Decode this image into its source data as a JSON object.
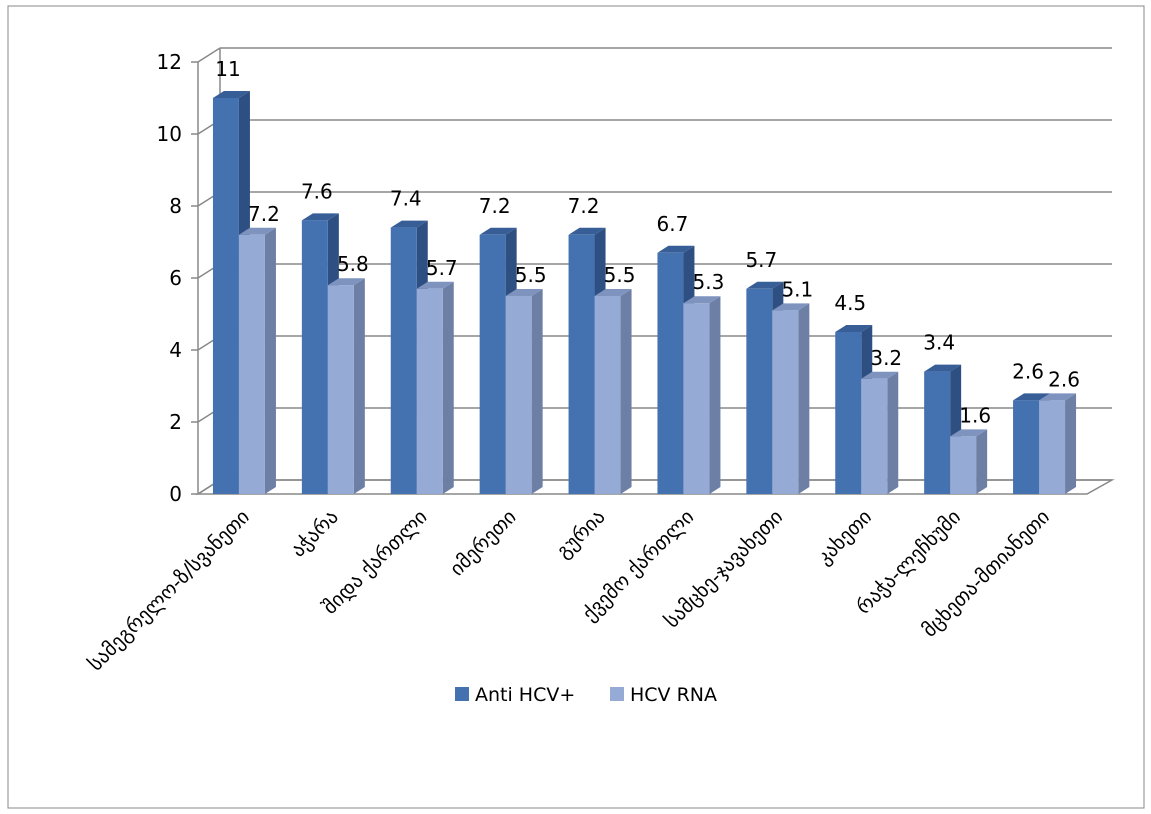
{
  "chart_data": {
    "type": "bar",
    "title": "",
    "xlabel": "",
    "ylabel": "",
    "ylim": [
      0,
      12
    ],
    "yticks": [
      0,
      2,
      4,
      6,
      8,
      10,
      12
    ],
    "grid": true,
    "legend_position": "bottom",
    "categories": [
      "სამეგრელო-ზ/სვანეთი",
      "აჭარა",
      "შიდა ქართლი",
      "იმერეთი",
      "გურია",
      "ქვემო ქართლი",
      "სამცხე-ჯავახეთი",
      "კახეთი",
      "რაჭა-ლეჩხუმი",
      "მცხეთა-მთიანეთი"
    ],
    "series": [
      {
        "name": "Anti HCV+",
        "values": [
          11,
          7.6,
          7.4,
          7.2,
          7.2,
          6.7,
          5.7,
          4.5,
          3.4,
          2.6
        ],
        "color": "#4472B0"
      },
      {
        "name": "HCV RNA",
        "values": [
          7.2,
          5.8,
          5.7,
          5.5,
          5.5,
          5.3,
          5.1,
          3.2,
          1.6,
          2.6
        ],
        "color": "#95AAD5"
      }
    ]
  }
}
